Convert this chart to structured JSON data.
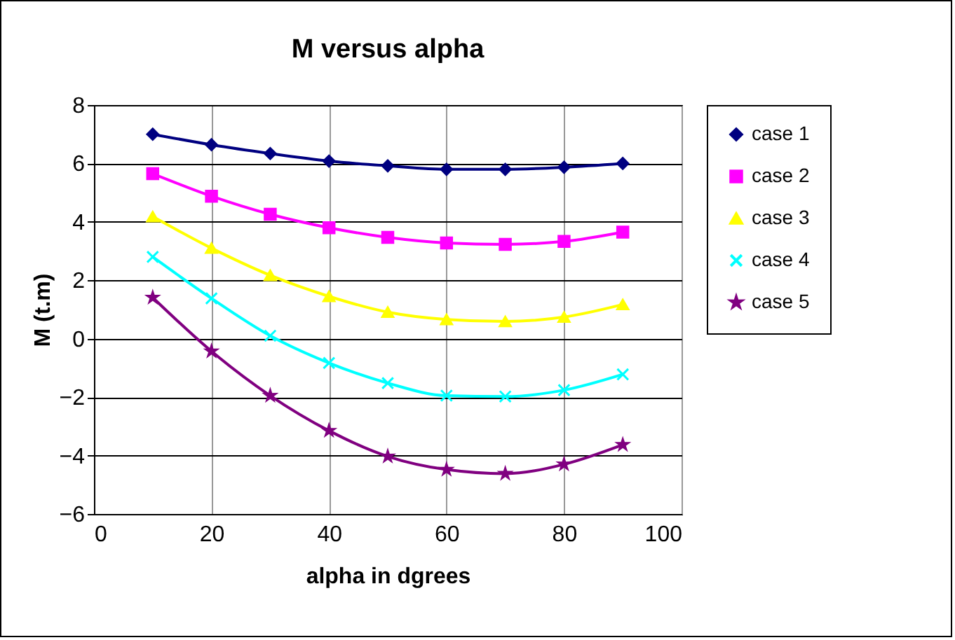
{
  "chart_data": {
    "type": "line",
    "title": "M versus alpha",
    "xlabel": "alpha in dgrees",
    "ylabel": "M (t.m)",
    "x": [
      10,
      20,
      30,
      40,
      50,
      60,
      70,
      80,
      90
    ],
    "series": [
      {
        "name": "case 1",
        "color": "#000080",
        "marker": "diamond",
        "values": [
          7.0,
          6.64,
          6.34,
          6.08,
          5.92,
          5.8,
          5.8,
          5.87,
          6.0
        ]
      },
      {
        "name": "case 2",
        "color": "#ff00ff",
        "marker": "square",
        "values": [
          5.65,
          4.88,
          4.26,
          3.8,
          3.47,
          3.28,
          3.23,
          3.33,
          3.65
        ]
      },
      {
        "name": "case 3",
        "color": "#ffff00",
        "marker": "triangle",
        "values": [
          4.18,
          3.1,
          2.17,
          1.45,
          0.91,
          0.66,
          0.59,
          0.74,
          1.17
        ]
      },
      {
        "name": "case 4",
        "color": "#00ffff",
        "marker": "cross",
        "values": [
          2.8,
          1.38,
          0.1,
          -0.83,
          -1.52,
          -1.95,
          -1.98,
          -1.76,
          -1.22
        ]
      },
      {
        "name": "case 5",
        "color": "#800080",
        "marker": "star",
        "values": [
          1.41,
          -0.43,
          -1.95,
          -3.15,
          -4.03,
          -4.48,
          -4.62,
          -4.3,
          -3.63
        ]
      }
    ],
    "xlim": [
      0,
      100
    ],
    "xticks": [
      0,
      20,
      40,
      60,
      80,
      100
    ],
    "ylim": [
      -6,
      8
    ],
    "yticks": [
      -6,
      -4,
      -2,
      0,
      2,
      4,
      6,
      8
    ],
    "grid": true,
    "legend": "right"
  }
}
